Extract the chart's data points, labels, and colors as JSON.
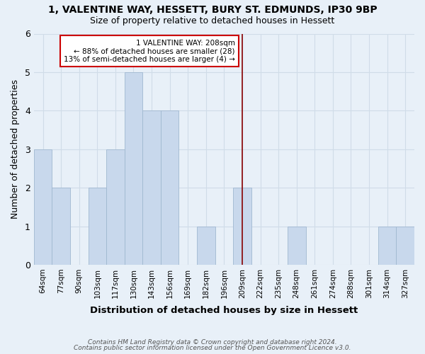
{
  "title_line1": "1, VALENTINE WAY, HESSETT, BURY ST. EDMUNDS, IP30 9BP",
  "title_line2": "Size of property relative to detached houses in Hessett",
  "xlabel": "Distribution of detached houses by size in Hessett",
  "ylabel": "Number of detached properties",
  "categories": [
    "64sqm",
    "77sqm",
    "90sqm",
    "103sqm",
    "117sqm",
    "130sqm",
    "143sqm",
    "156sqm",
    "169sqm",
    "182sqm",
    "196sqm",
    "209sqm",
    "222sqm",
    "235sqm",
    "248sqm",
    "261sqm",
    "274sqm",
    "288sqm",
    "301sqm",
    "314sqm",
    "327sqm"
  ],
  "values": [
    3,
    2,
    0,
    2,
    3,
    5,
    4,
    4,
    0,
    1,
    0,
    2,
    0,
    0,
    1,
    0,
    0,
    0,
    0,
    1,
    1
  ],
  "bar_color": "#c8d8ec",
  "bar_edge_color": "#a0b8d0",
  "grid_color": "#d0dce8",
  "bg_color": "#e8f0f8",
  "ann_category": "209sqm",
  "annotation_box_text": "1 VALENTINE WAY: 208sqm\n← 88% of detached houses are smaller (28)\n13% of semi-detached houses are larger (4) →",
  "annotation_box_color": "#ffffff",
  "annotation_line_color": "#880000",
  "annotation_box_border_color": "#cc0000",
  "ylim": [
    0,
    6
  ],
  "yticks": [
    0,
    1,
    2,
    3,
    4,
    5,
    6
  ],
  "footer_line1": "Contains HM Land Registry data © Crown copyright and database right 2024.",
  "footer_line2": "Contains public sector information licensed under the Open Government Licence v3.0."
}
